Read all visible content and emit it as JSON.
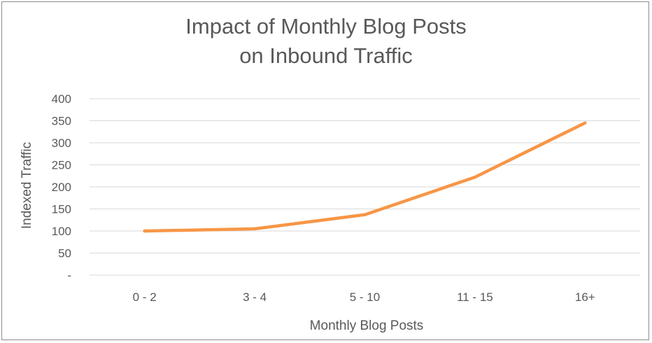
{
  "chart_data": {
    "type": "line",
    "title_lines": [
      "Impact of Monthly Blog Posts",
      "on Inbound Traffic"
    ],
    "xlabel": "Monthly Blog Posts",
    "ylabel": "Indexed Traffic",
    "categories": [
      "0 - 2",
      "3 - 4",
      "5 - 10",
      "11 - 15",
      "16+"
    ],
    "series": [
      {
        "values": [
          100,
          105,
          137,
          222,
          345
        ],
        "color": "#f79646"
      }
    ],
    "ylim": [
      0,
      400
    ],
    "yticks": [
      {
        "value": 0,
        "label": "-"
      },
      {
        "value": 50,
        "label": "50"
      },
      {
        "value": 100,
        "label": "100"
      },
      {
        "value": 150,
        "label": "150"
      },
      {
        "value": 200,
        "label": "200"
      },
      {
        "value": 250,
        "label": "250"
      },
      {
        "value": 300,
        "label": "300"
      },
      {
        "value": 350,
        "label": "350"
      },
      {
        "value": 400,
        "label": "400"
      }
    ],
    "grid": true,
    "legend": "none",
    "gridline_color": "#d9d9d9",
    "text_color": "#595959"
  }
}
